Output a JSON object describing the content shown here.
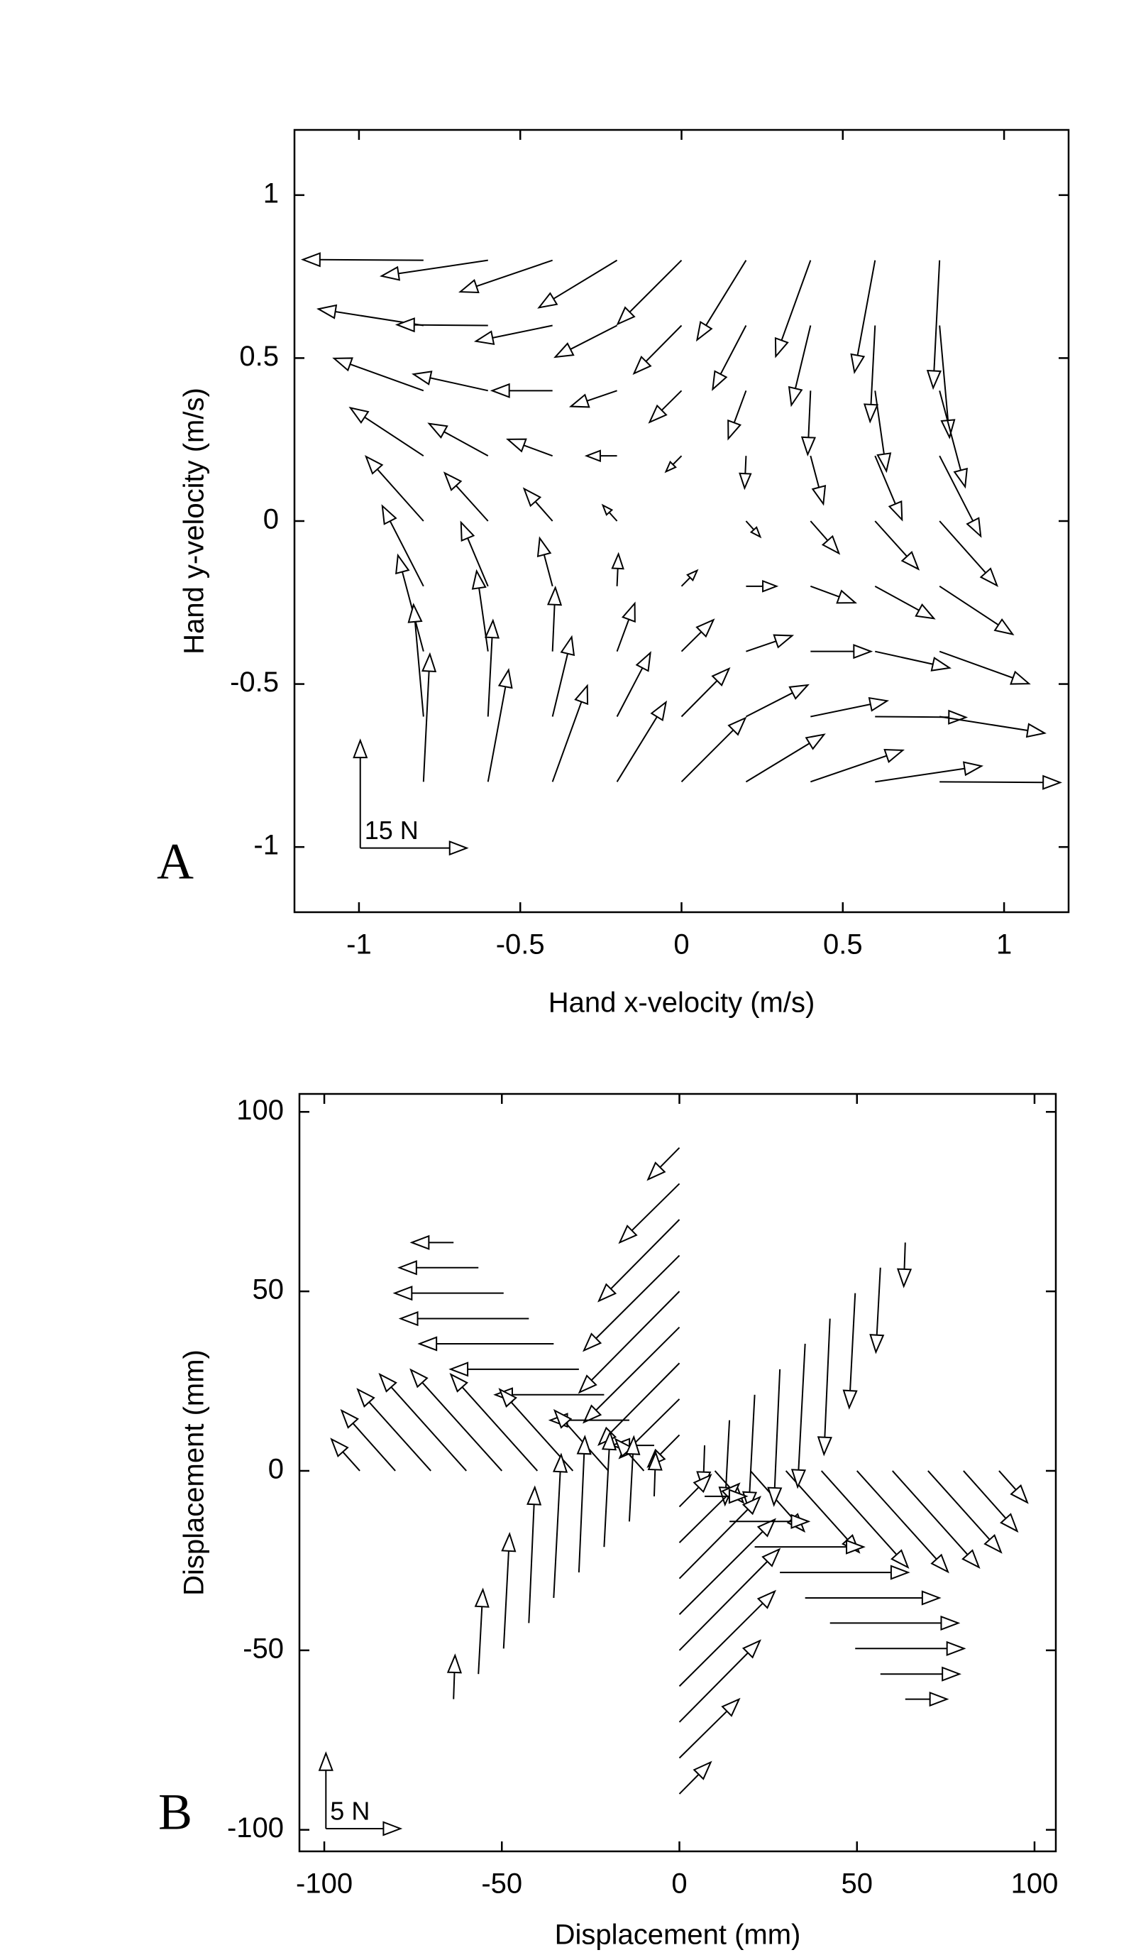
{
  "chart_data": [
    {
      "type": "quiver",
      "panel_label": "A",
      "xlabel": "Hand x-velocity (m/s)",
      "ylabel": "Hand y-velocity (m/s)",
      "xlim": [
        -1.2,
        1.2
      ],
      "ylim": [
        -1.2,
        1.2
      ],
      "xticks": [
        -1,
        -0.5,
        0,
        0.5,
        1
      ],
      "yticks": [
        -1,
        -0.5,
        0,
        0.5,
        1
      ],
      "x": [
        -0.8,
        -0.6,
        -0.4,
        -0.2,
        0,
        0.2,
        0.4,
        0.6,
        0.8
      ],
      "y": [
        0.8,
        0.6,
        0.4,
        0.2,
        0,
        -0.2,
        -0.4,
        -0.6,
        -0.8
      ],
      "u": [
        [
          -17.0,
          -15.0,
          -13.0,
          -11.0,
          -9.0,
          -6.9,
          -4.9,
          -2.9,
          -0.9
        ],
        [
          -14.8,
          -12.8,
          -10.8,
          -8.7,
          -6.7,
          -4.7,
          -2.7,
          -0.7,
          1.4
        ],
        [
          -12.6,
          -10.5,
          -8.5,
          -6.5,
          -4.5,
          -2.5,
          -0.4,
          1.6,
          3.6
        ],
        [
          -10.3,
          -8.3,
          -6.3,
          -4.3,
          -2.2,
          -0.2,
          1.8,
          3.8,
          5.8
        ],
        [
          -8.1,
          -6.1,
          -4.0,
          -2.0,
          0,
          2.0,
          4.0,
          6.1,
          8.1
        ],
        [
          -5.8,
          -3.8,
          -1.8,
          0.2,
          2.2,
          4.3,
          6.3,
          8.3,
          10.3
        ],
        [
          -3.6,
          -1.6,
          0.4,
          2.5,
          4.5,
          6.5,
          8.5,
          10.5,
          12.6
        ],
        [
          -1.4,
          0.7,
          2.7,
          4.7,
          6.7,
          8.7,
          10.8,
          12.8,
          14.8
        ],
        [
          0.9,
          2.9,
          4.9,
          6.9,
          9.0,
          11.0,
          13.0,
          15.0,
          17.0
        ]
      ],
      "v": [
        [
          0.1,
          -2.2,
          -4.4,
          -6.6,
          -8.9,
          -11.1,
          -13.4,
          -15.6,
          -17.8
        ],
        [
          2.3,
          0.1,
          -2.2,
          -4.4,
          -6.7,
          -8.9,
          -11.1,
          -13.4,
          -15.6
        ],
        [
          4.5,
          2.3,
          0.0,
          -2.2,
          -4.4,
          -6.7,
          -8.9,
          -11.2,
          -13.4
        ],
        [
          6.7,
          4.5,
          2.3,
          0.0,
          -2.2,
          -4.5,
          -6.7,
          -8.9,
          -11.2
        ],
        [
          9.0,
          6.7,
          4.5,
          2.2,
          0,
          -2.2,
          -4.5,
          -6.7,
          -9.0
        ],
        [
          11.2,
          8.9,
          6.7,
          4.5,
          2.2,
          0.0,
          -2.3,
          -4.5,
          -6.7
        ],
        [
          13.4,
          11.2,
          8.9,
          6.7,
          4.4,
          2.2,
          0.0,
          -2.3,
          -4.5
        ],
        [
          15.6,
          13.4,
          11.1,
          8.9,
          6.7,
          4.4,
          2.2,
          -0.1,
          -2.3
        ],
        [
          17.8,
          15.6,
          13.4,
          11.1,
          8.9,
          6.6,
          4.4,
          2.2,
          -0.1
        ]
      ],
      "scale": {
        "value": 15,
        "label": "15 N"
      }
    },
    {
      "type": "quiver",
      "panel_label": "B",
      "xlabel": "Displacement (mm)",
      "ylabel": "Displacement (mm)",
      "xlim": [
        -107,
        106
      ],
      "ylim": [
        -106,
        105
      ],
      "xticks": [
        -100,
        -50,
        0,
        50,
        100
      ],
      "yticks": [
        -100,
        -50,
        0,
        50,
        100
      ],
      "reaches": [
        {
          "x": [
            10,
            20,
            30,
            40,
            50,
            60,
            70,
            80,
            90
          ],
          "y": [
            0,
            0,
            0,
            0,
            0,
            0,
            0,
            0,
            0
          ],
          "u": [
            1.9,
            3.6,
            4.9,
            5.8,
            6.1,
            5.8,
            4.9,
            3.6,
            1.9
          ],
          "v": [
            -2.1,
            -4.0,
            -5.4,
            -6.4,
            -6.7,
            -6.4,
            -5.4,
            -4.0,
            -2.1
          ]
        },
        {
          "x": [
            7.1,
            14.1,
            21.2,
            28.3,
            35.4,
            42.4,
            49.5,
            56.6,
            63.6
          ],
          "y": [
            7.1,
            14.1,
            21.2,
            28.3,
            35.4,
            42.4,
            49.5,
            56.6,
            63.6
          ],
          "u": [
            -0.1,
            -0.3,
            -0.4,
            -0.4,
            -0.5,
            -0.4,
            -0.4,
            -0.3,
            -0.1
          ],
          "v": [
            -2.9,
            -5.6,
            -7.6,
            -9.0,
            -9.5,
            -9.0,
            -7.6,
            -5.6,
            -2.9
          ]
        },
        {
          "x": [
            0,
            0,
            0,
            0,
            0,
            0,
            0,
            0,
            0
          ],
          "y": [
            10,
            20,
            30,
            40,
            50,
            60,
            70,
            80,
            90
          ],
          "u": [
            -2.1,
            -4.0,
            -5.4,
            -6.4,
            -6.7,
            -6.4,
            -5.4,
            -4.0,
            -2.1
          ],
          "v": [
            -2.1,
            -3.9,
            -5.4,
            -6.3,
            -6.7,
            -6.3,
            -5.4,
            -3.9,
            -2.1
          ]
        },
        {
          "x": [
            -7.1,
            -14.1,
            -21.2,
            -28.3,
            -35.4,
            -42.4,
            -49.5,
            -56.6,
            -63.6
          ],
          "y": [
            7.1,
            14.1,
            21.2,
            28.3,
            35.4,
            42.4,
            49.5,
            56.6,
            63.6
          ],
          "u": [
            -2.8,
            -5.3,
            -7.3,
            -8.6,
            -9.0,
            -8.6,
            -7.3,
            -5.3,
            -2.8
          ],
          "v": [
            0.0,
            0.0,
            0.0,
            0.0,
            0.0,
            0.0,
            0.0,
            0.0,
            0.0
          ]
        },
        {
          "x": [
            -10,
            -20,
            -30,
            -40,
            -50,
            -60,
            -70,
            -80,
            -90
          ],
          "y": [
            0,
            0,
            0,
            0,
            0,
            0,
            0,
            0,
            0
          ],
          "u": [
            -1.9,
            -3.6,
            -4.9,
            -5.8,
            -6.1,
            -5.8,
            -4.9,
            -3.6,
            -1.9
          ],
          "v": [
            2.1,
            4.0,
            5.4,
            6.4,
            6.7,
            6.4,
            5.4,
            4.0,
            2.1
          ]
        },
        {
          "x": [
            -7.1,
            -14.1,
            -21.2,
            -28.3,
            -35.4,
            -42.4,
            -49.5,
            -56.6,
            -63.6
          ],
          "y": [
            -7.1,
            -14.1,
            -21.2,
            -28.3,
            -35.4,
            -42.4,
            -49.5,
            -56.6,
            -63.6
          ],
          "u": [
            0.1,
            0.3,
            0.4,
            0.4,
            0.5,
            0.4,
            0.4,
            0.3,
            0.1
          ],
          "v": [
            2.9,
            5.6,
            7.6,
            9.0,
            9.5,
            9.0,
            7.6,
            5.6,
            2.9
          ]
        },
        {
          "x": [
            0,
            0,
            0,
            0,
            0,
            0,
            0,
            0,
            0
          ],
          "y": [
            -10,
            -20,
            -30,
            -40,
            -50,
            -60,
            -70,
            -80,
            -90
          ],
          "u": [
            2.1,
            4.0,
            5.4,
            6.4,
            6.7,
            6.4,
            5.4,
            4.0,
            2.1
          ],
          "v": [
            2.1,
            3.9,
            5.4,
            6.3,
            6.7,
            6.3,
            5.4,
            3.9,
            2.1
          ]
        },
        {
          "x": [
            7.1,
            14.1,
            21.2,
            28.3,
            35.4,
            42.4,
            49.5,
            56.6,
            63.6
          ],
          "y": [
            -7.1,
            -14.1,
            -21.2,
            -28.3,
            -35.4,
            -42.4,
            -49.5,
            -56.6,
            -63.6
          ],
          "u": [
            2.8,
            5.3,
            7.3,
            8.6,
            9.0,
            8.6,
            7.3,
            5.3,
            2.8
          ],
          "v": [
            0.0,
            0.0,
            0.0,
            0.0,
            0.0,
            0.0,
            0.0,
            0.0,
            0.0
          ]
        }
      ],
      "scale": {
        "value": 5,
        "label": "5 N"
      }
    }
  ]
}
